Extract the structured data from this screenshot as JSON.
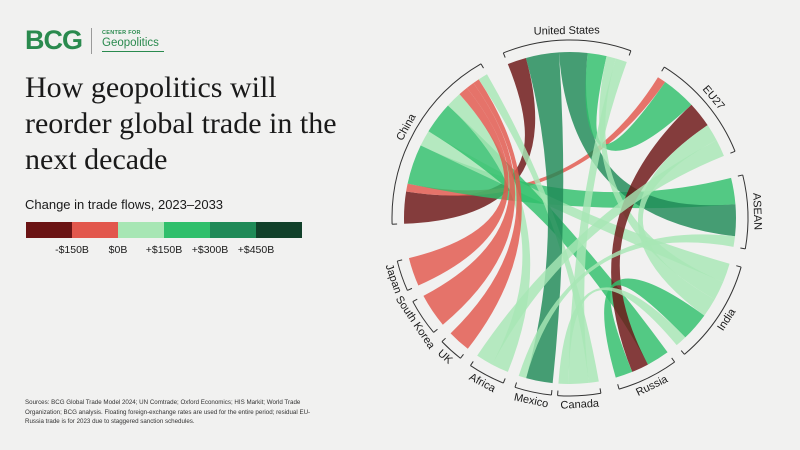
{
  "logo": {
    "brand": "BCG",
    "center_small": "CENTER FOR",
    "center_name": "Geopolitics"
  },
  "title": "How geopolitics will reorder global trade in the next decade",
  "subtitle": "Change in trade flows, 2023–2033",
  "legend": {
    "colors": [
      "#6b1414",
      "#e2574c",
      "#a7e6b4",
      "#2fbf6b",
      "#1f8a57",
      "#11402a"
    ],
    "labels": [
      "-$150B",
      "$0B",
      "+$150B",
      "+$300B",
      "+$450B"
    ]
  },
  "sources": "Sources: BCG Global Trade Model 2024; UN Comtrade; Oxford Economics; HIS Markit; World Trade Organization; BCG analysis. Floating foreign-exchange rates are used for the entire period; residual EU-Russia trade is for 2023 due to staggered sanction schedules.",
  "chart_data": {
    "type": "chord",
    "title": "How geopolitics will reorder global trade in the next decade",
    "value_label": "Change in trade flows, 2023–2033",
    "regions": [
      "United States",
      "EU27",
      "ASEAN",
      "India",
      "Russia",
      "Canada",
      "Mexico",
      "Africa",
      "UK",
      "South Korea",
      "Japan",
      "China"
    ],
    "flows": [
      {
        "source": "China",
        "target": "United States",
        "value": -200
      },
      {
        "source": "China",
        "target": "EU27",
        "value": -50
      },
      {
        "source": "China",
        "target": "ASEAN",
        "value": 250
      },
      {
        "source": "China",
        "target": "India",
        "value": 100
      },
      {
        "source": "China",
        "target": "Russia",
        "value": 200
      },
      {
        "source": "China",
        "target": "Africa",
        "value": 100
      },
      {
        "source": "China",
        "target": "Japan",
        "value": -60
      },
      {
        "source": "China",
        "target": "South Korea",
        "value": -50
      },
      {
        "source": "China",
        "target": "UK",
        "value": -40
      },
      {
        "source": "China",
        "target": "Canada",
        "value": 60
      },
      {
        "source": "United States",
        "target": "Mexico",
        "value": 350
      },
      {
        "source": "United States",
        "target": "ASEAN",
        "value": 300
      },
      {
        "source": "United States",
        "target": "EU27",
        "value": 200
      },
      {
        "source": "United States",
        "target": "India",
        "value": 100
      },
      {
        "source": "United States",
        "target": "Canada",
        "value": 120
      },
      {
        "source": "EU27",
        "target": "Russia",
        "value": -150
      },
      {
        "source": "EU27",
        "target": "India",
        "value": 100
      },
      {
        "source": "EU27",
        "target": "Africa",
        "value": 100
      },
      {
        "source": "ASEAN",
        "target": "Mexico",
        "value": 100
      },
      {
        "source": "India",
        "target": "Russia",
        "value": 150
      },
      {
        "source": "India",
        "target": "Canada",
        "value": 60
      }
    ]
  }
}
